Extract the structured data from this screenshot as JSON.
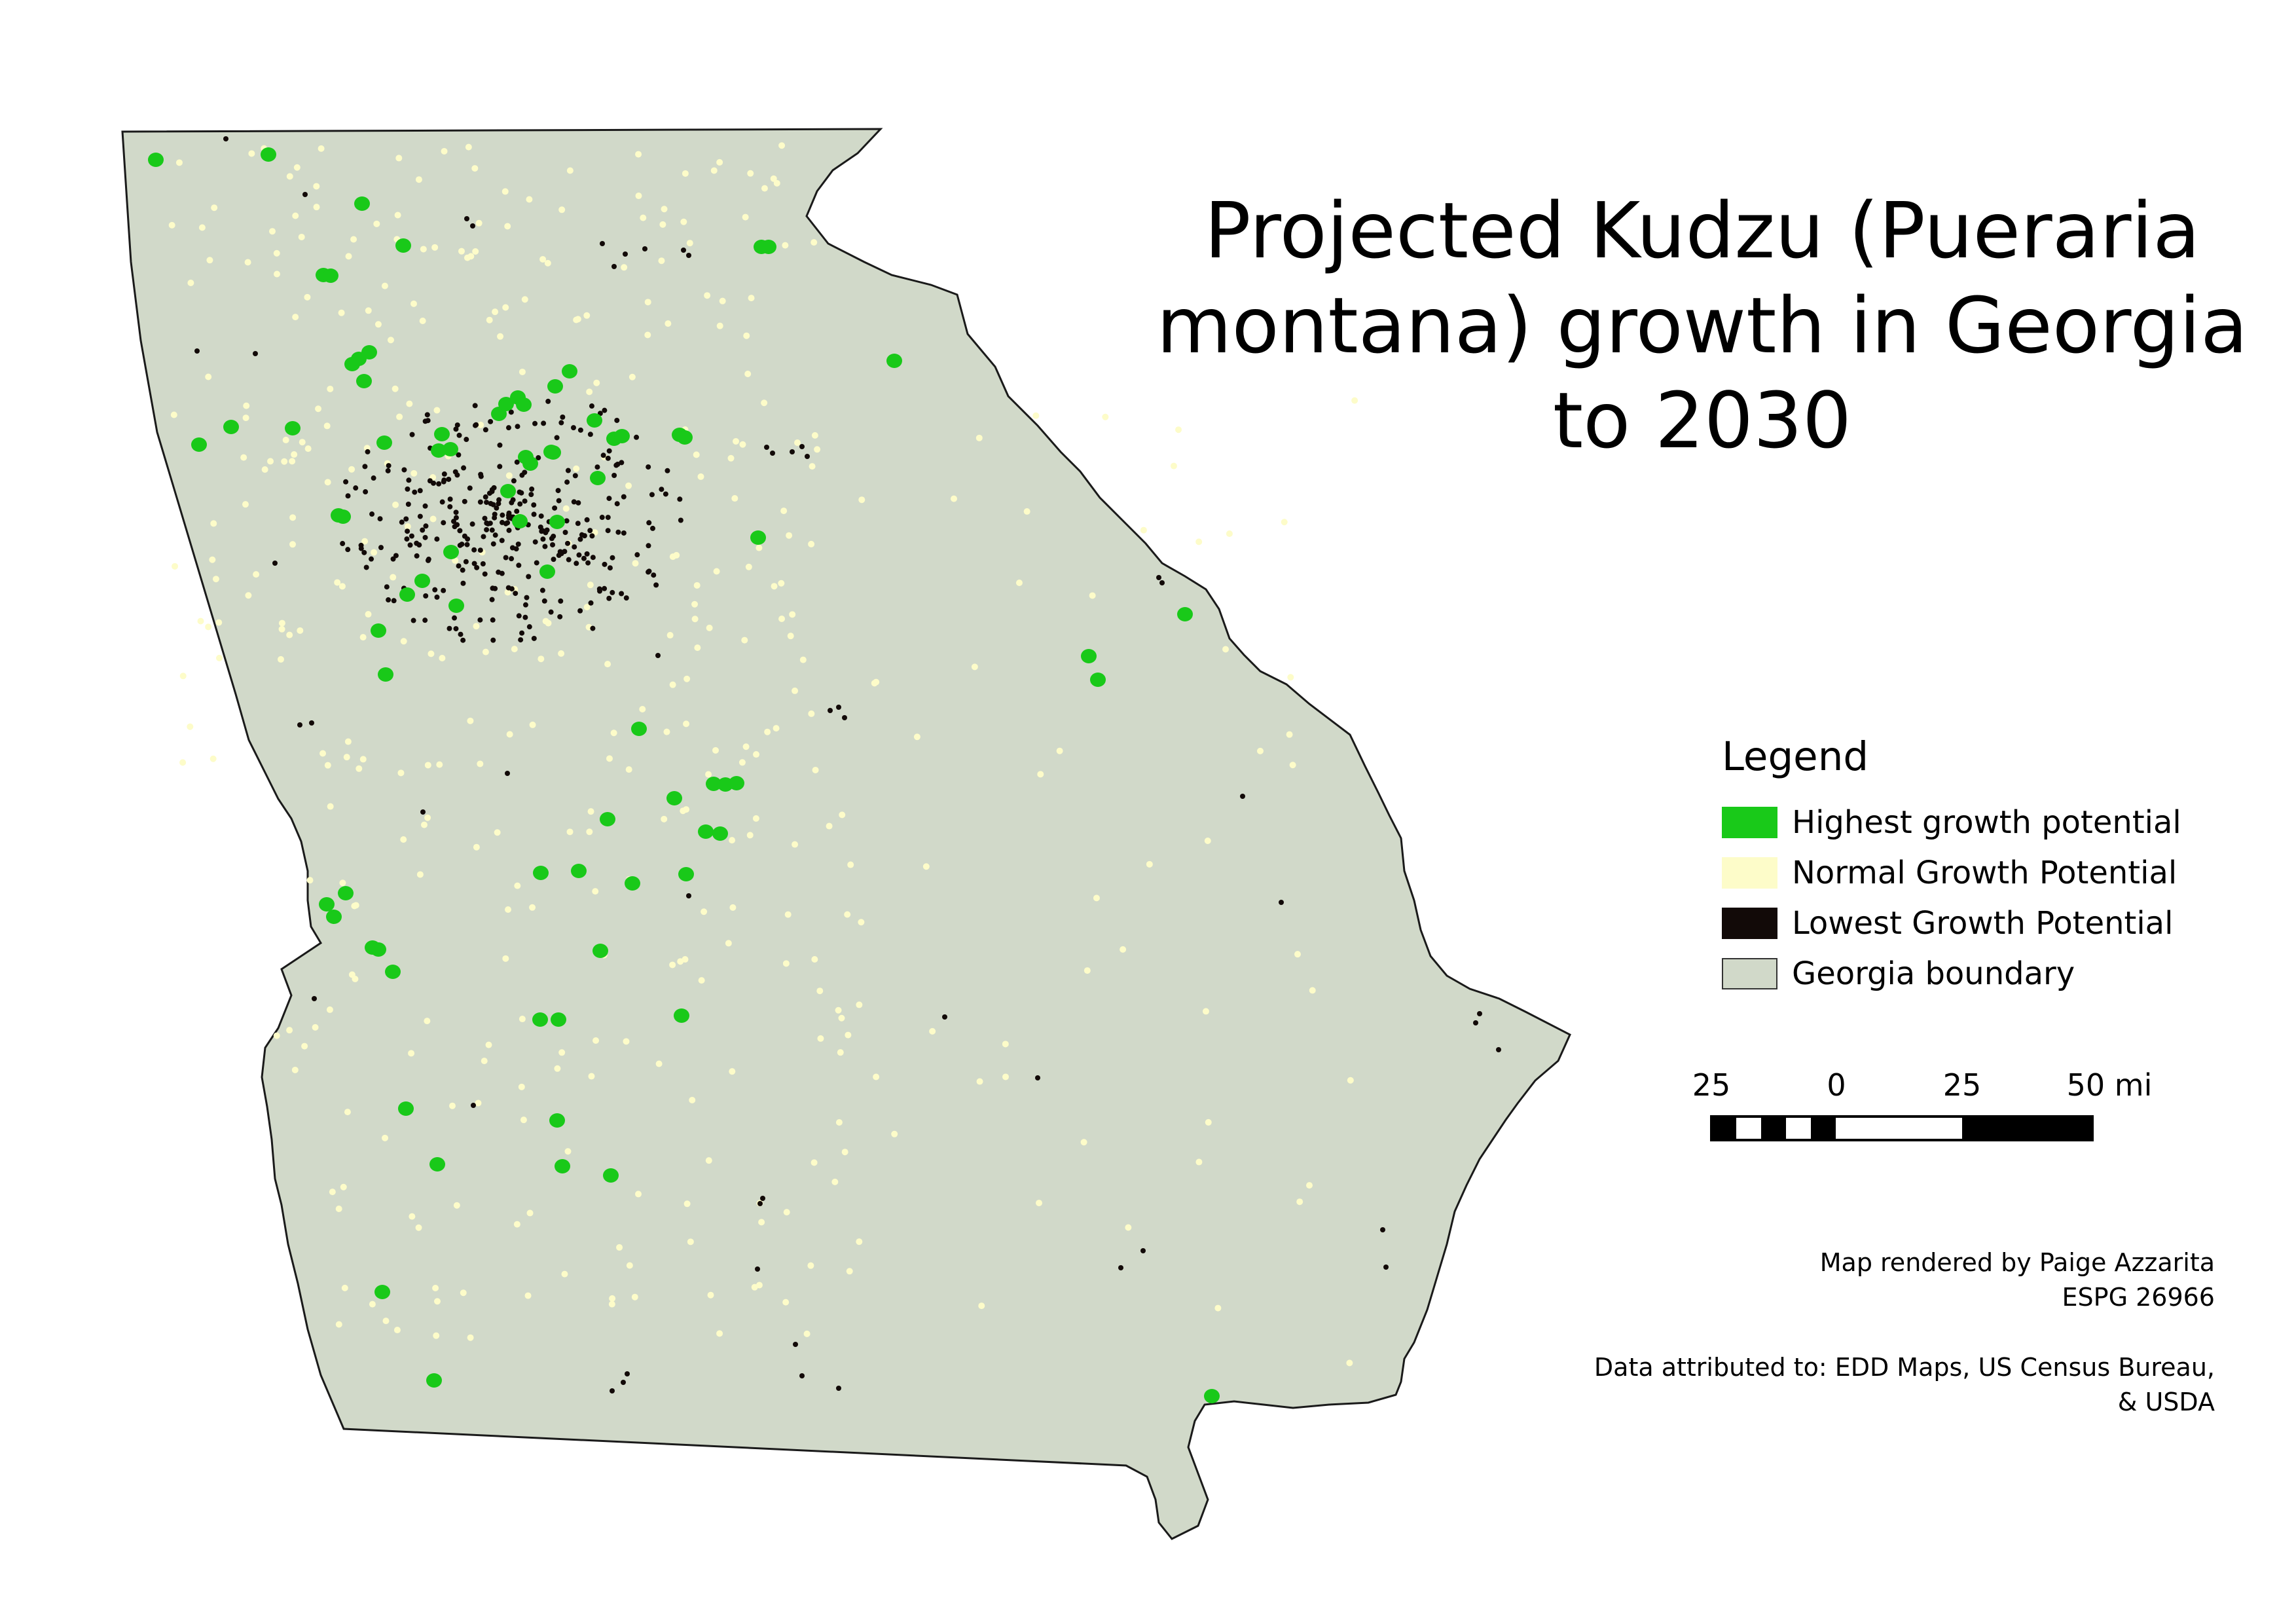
{
  "map": {
    "title_lines": [
      "Projected Kudzu (Pueraria",
      "montana) growth in Georgia",
      "to 2030"
    ],
    "colors": {
      "background": "#ffffff",
      "georgia_fill": "#d1d9c9",
      "georgia_stroke": "#1a1a1a",
      "highest": "#19c919",
      "normal": "#fdfcc9",
      "lowest": "#120a08"
    }
  },
  "legend": {
    "title": "Legend",
    "items": [
      {
        "key": "highest",
        "label": "Highest growth potential",
        "color": "#19c919"
      },
      {
        "key": "normal",
        "label": "Normal Growth Potential",
        "color": "#fdfcc9"
      },
      {
        "key": "lowest",
        "label": "Lowest Growth Potential",
        "color": "#120a08"
      },
      {
        "key": "boundary",
        "label": "Georgia boundary",
        "color": "#d1d9c9"
      }
    ]
  },
  "scale_bar": {
    "labels": [
      "25",
      "0",
      "25",
      "50 mi"
    ]
  },
  "credits": {
    "line1": "Map rendered by Paige Azzarita",
    "line2": "ESPG 26966",
    "line3": "Data attributed to: EDD Maps, US Census Bureau,",
    "line4": "& USDA"
  }
}
